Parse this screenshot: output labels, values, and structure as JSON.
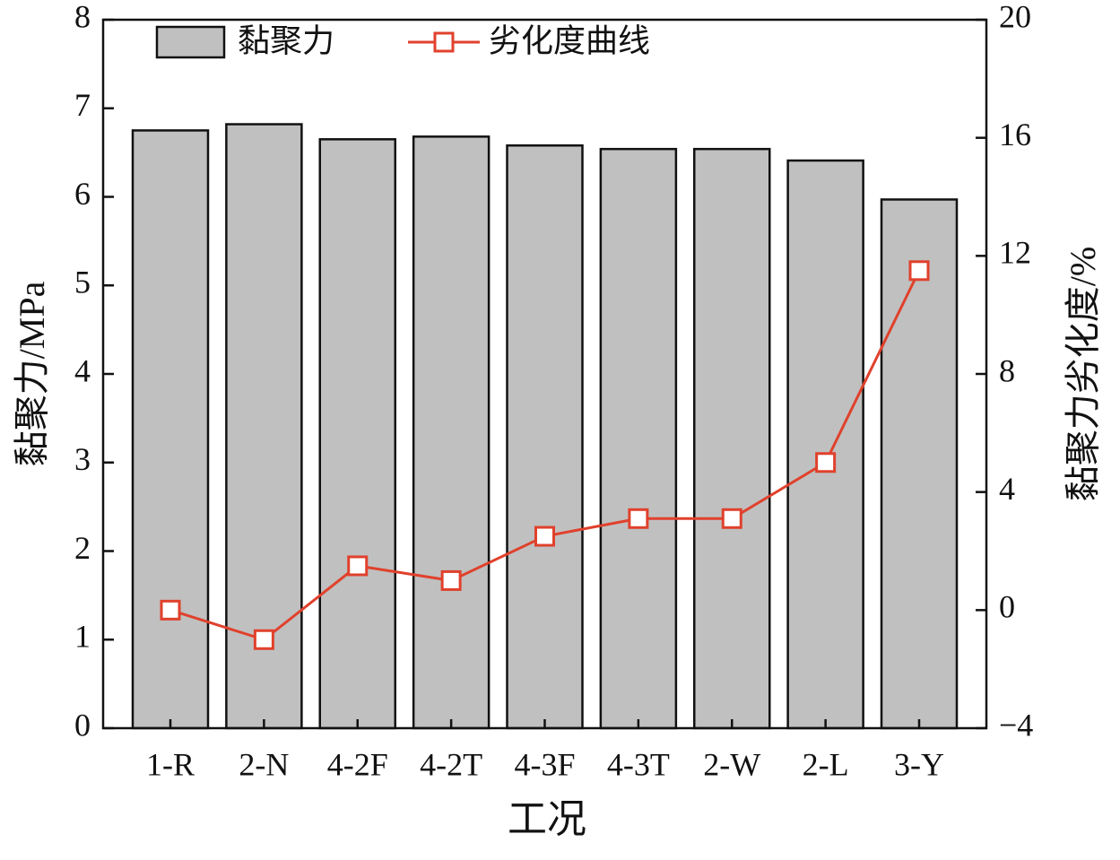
{
  "chart_data": {
    "type": "bar_line",
    "x_label": "工况",
    "y_label": "黏聚力/MPa",
    "y2_label": "黏聚力劣化度/%",
    "categories": [
      "1-R",
      "2-N",
      "4-2F",
      "4-2T",
      "4-3F",
      "4-3T",
      "2-W",
      "2-L",
      "3-Y"
    ],
    "series": [
      {
        "name": "黏聚力",
        "type": "bar",
        "color": "#c0c0c0",
        "values": [
          6.75,
          6.82,
          6.65,
          6.68,
          6.58,
          6.54,
          6.54,
          6.41,
          5.97
        ]
      },
      {
        "name": "劣化度曲线",
        "type": "line",
        "axis": "y2",
        "color": "#e0412c",
        "values": [
          0,
          -1.0,
          1.5,
          1.0,
          2.5,
          3.1,
          3.1,
          5.0,
          11.5
        ]
      }
    ],
    "ylim": [
      0,
      8
    ],
    "yticks": [
      0,
      1,
      2,
      3,
      4,
      5,
      6,
      7,
      8
    ],
    "y2lim": [
      -4,
      20
    ],
    "y2ticks": [
      {
        "value": -4,
        "label": "−4"
      },
      0,
      4,
      8,
      12,
      16,
      20
    ],
    "legend": "upper left",
    "grid": false
  }
}
